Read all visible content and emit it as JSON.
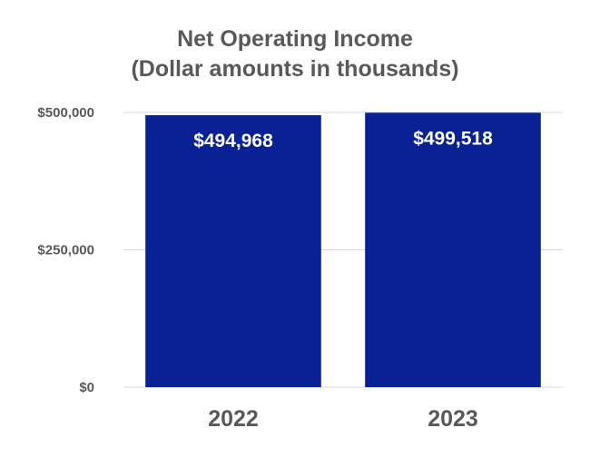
{
  "chart_data": {
    "type": "bar",
    "title": "Net Operating Income",
    "subtitle": "(Dollar amounts in thousands)",
    "categories": [
      "2022",
      "2023"
    ],
    "values": [
      494968,
      499518
    ],
    "data_labels": [
      "$494,968",
      "$499,518"
    ],
    "y_ticks": [
      0,
      250000,
      500000
    ],
    "y_tick_labels": [
      "$0",
      "$250,000",
      "$500,000"
    ],
    "ylim": [
      0,
      500000
    ],
    "grid": true,
    "legend": "none",
    "bar_color": "#0a2196"
  }
}
